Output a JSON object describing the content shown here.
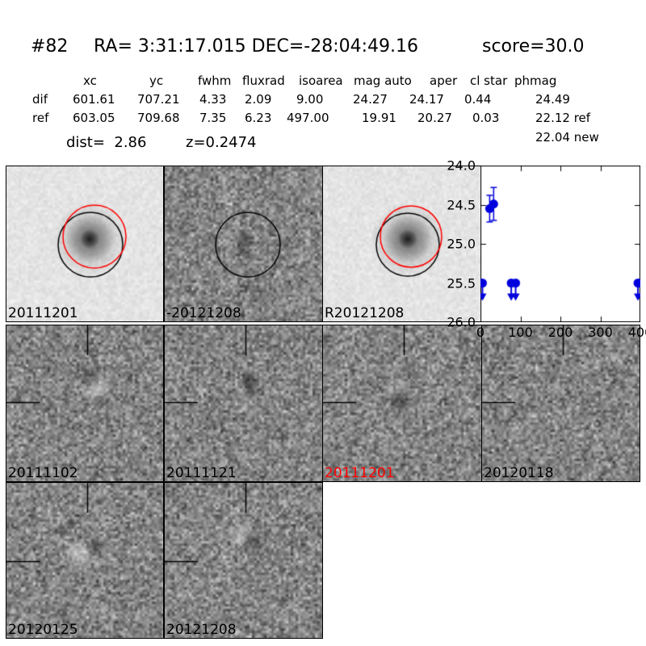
{
  "header": {
    "id": "#82",
    "coords": "RA= 3:31:17.015 DEC=-28:04:49.16",
    "score": "score=30.0"
  },
  "photometry_table": {
    "columns": [
      "xc",
      "yc",
      "fwhm",
      "fluxrad",
      "isoarea",
      "mag auto",
      "aper",
      "cl star",
      "phmag"
    ],
    "rows": [
      {
        "label": "dif",
        "values": [
          "601.61",
          "707.21",
          "4.33",
          "2.09",
          "9.00",
          "24.27",
          "24.17",
          "0.44",
          "24.49"
        ]
      },
      {
        "label": "ref",
        "values": [
          "603.05",
          "709.68",
          "7.35",
          "6.23",
          "497.00",
          "19.91",
          "20.27",
          "0.03",
          "22.12 ref"
        ]
      }
    ],
    "phmag_extra": "22.04 new",
    "dist": "dist=  2.86",
    "z": "z=0.2474"
  },
  "cutouts": {
    "row1": [
      {
        "label": "20111201",
        "label_color": "#000000",
        "kind": "template",
        "overlay": "black+red circles"
      },
      {
        "label": "-20121208",
        "label_color": "#000000",
        "kind": "difference",
        "overlay": "black circle"
      },
      {
        "label": "R20121208",
        "label_color": "#000000",
        "kind": "template",
        "overlay": "black+red circles"
      }
    ],
    "row2": [
      {
        "label": "20111102",
        "label_color": "#000000",
        "kind": "difference"
      },
      {
        "label": "20111121",
        "label_color": "#000000",
        "kind": "difference"
      },
      {
        "label": "20111201",
        "label_color": "#ff0000",
        "kind": "difference"
      },
      {
        "label": "20120118",
        "label_color": "#000000",
        "kind": "difference"
      }
    ],
    "row3": [
      {
        "label": "20120125",
        "label_color": "#000000",
        "kind": "difference"
      },
      {
        "label": "20121208",
        "label_color": "#000000",
        "kind": "difference"
      }
    ]
  },
  "chart_data": {
    "type": "scatter",
    "title": "",
    "xlabel": "",
    "ylabel": "",
    "xlim": [
      0,
      400
    ],
    "ylim": [
      26.0,
      24.0
    ],
    "xticks": [
      0,
      100,
      200,
      300,
      400
    ],
    "yticks": [
      24.0,
      24.5,
      25.0,
      25.5,
      26.0
    ],
    "ytick_labels": [
      "24.0",
      "24.5",
      "25.0",
      "25.5",
      "26.0"
    ],
    "xtick_labels": [
      "0",
      "100",
      "200",
      "300",
      "400"
    ],
    "grid": false,
    "legend": null,
    "marker_color": "#0000dd",
    "series": [
      {
        "name": "detections",
        "marker": "circle-errorbar",
        "points": [
          {
            "x": 23,
            "mag": 24.55,
            "err": 0.17
          },
          {
            "x": 33,
            "mag": 24.49,
            "err": 0.21
          }
        ]
      },
      {
        "name": "upper-limits",
        "marker": "circle-down-arrow",
        "points": [
          {
            "x": 5,
            "mag": 25.5
          },
          {
            "x": 77,
            "mag": 25.5
          },
          {
            "x": 88,
            "mag": 25.5
          },
          {
            "x": 394,
            "mag": 25.5
          }
        ]
      }
    ]
  }
}
